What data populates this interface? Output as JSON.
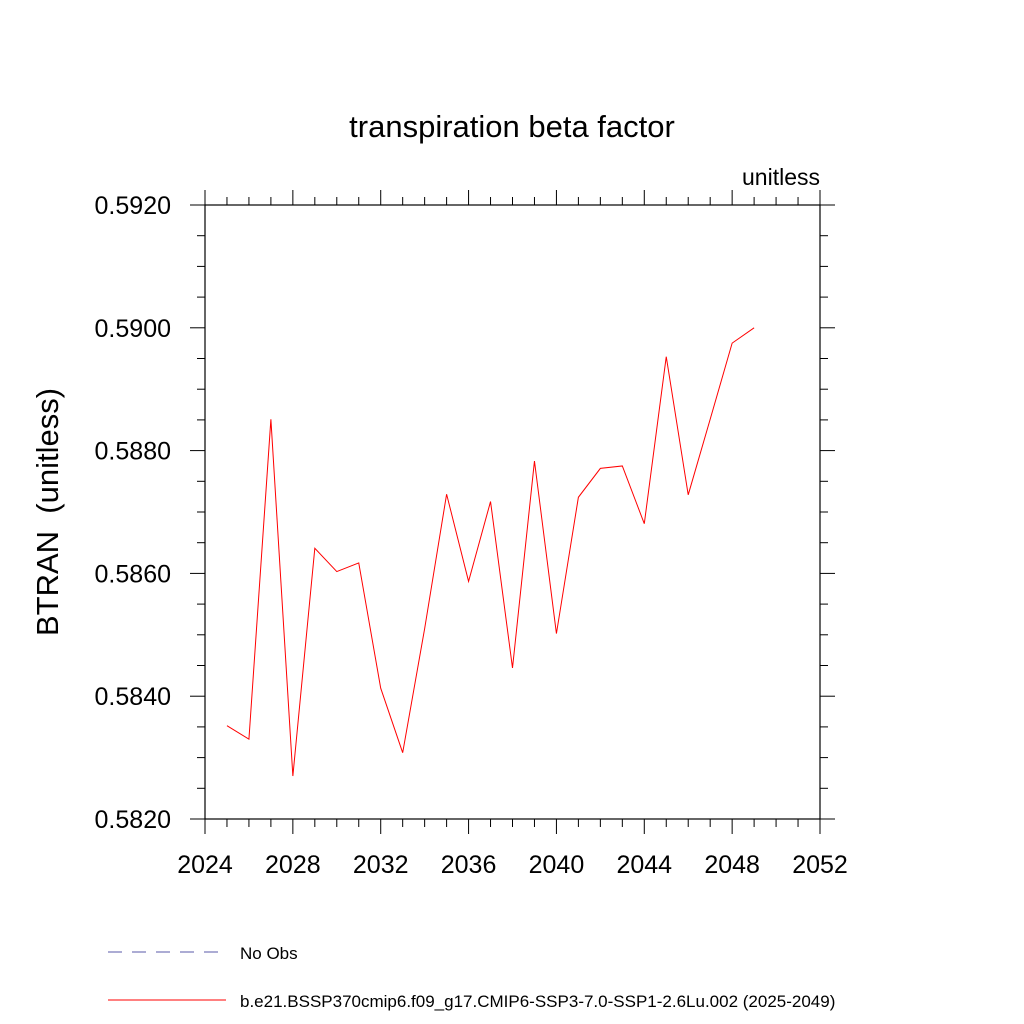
{
  "chart_data": {
    "type": "line",
    "title": "transpiration beta factor",
    "units_label": "unitless",
    "ylabel": "BTRAN  (unitless)",
    "xlabel": "",
    "xlim": [
      2024,
      2052
    ],
    "ylim": [
      0.582,
      0.592
    ],
    "x_ticks": [
      2024,
      2028,
      2032,
      2036,
      2040,
      2044,
      2048,
      2052
    ],
    "x_tick_labels": [
      "2024",
      "2028",
      "2032",
      "2036",
      "2040",
      "2044",
      "2048",
      "2052"
    ],
    "y_ticks": [
      0.582,
      0.584,
      0.586,
      0.588,
      0.59,
      0.592
    ],
    "y_tick_labels": [
      "0.5820",
      "0.5840",
      "0.5860",
      "0.5880",
      "0.5900",
      "0.5920"
    ],
    "grid": false,
    "legend_position": "bottom-left",
    "series": [
      {
        "name": "b.e21.BSSP370cmip6.f09_g17.CMIP6-SSP3-7.0-SSP1-2.6Lu.002 (2025-2049)",
        "color": "#ff0000",
        "x": [
          2025,
          2026,
          2027,
          2028,
          2029,
          2030,
          2031,
          2032,
          2033,
          2034,
          2035,
          2036,
          2037,
          2038,
          2039,
          2040,
          2041,
          2042,
          2043,
          2044,
          2045,
          2046,
          2047,
          2048,
          2049
        ],
        "values": [
          0.58352,
          0.5833,
          0.58851,
          0.5827,
          0.58641,
          0.58603,
          0.58617,
          0.58413,
          0.58308,
          0.5851,
          0.58729,
          0.58587,
          0.58717,
          0.58446,
          0.58783,
          0.58502,
          0.58724,
          0.58771,
          0.58775,
          0.58681,
          0.58953,
          0.58728,
          0.58851,
          0.58975,
          0.59
        ]
      }
    ],
    "legend": [
      {
        "label": "No Obs",
        "color": "#5a5aa8",
        "dash": "dashed"
      },
      {
        "label": "b.e21.BSSP370cmip6.f09_g17.CMIP6-SSP3-7.0-SSP1-2.6Lu.002 (2025-2049)",
        "color": "#ff0000",
        "dash": "solid"
      }
    ]
  }
}
